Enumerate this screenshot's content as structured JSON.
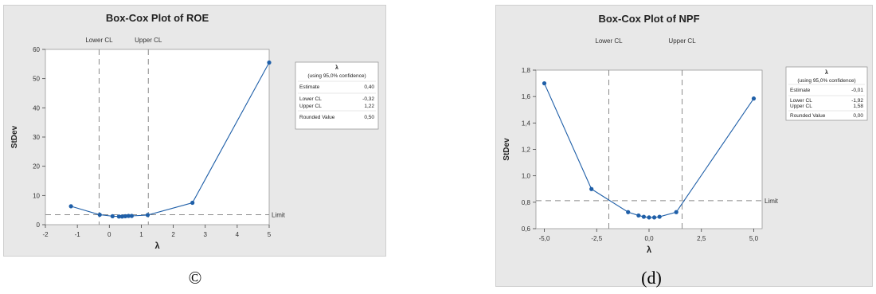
{
  "captions": [
    "©",
    "(d)"
  ],
  "chart_data": [
    {
      "type": "line",
      "title": "Box-Cox Plot of ROE",
      "xlabel": "λ",
      "ylabel": "StDev",
      "xlim": [
        -2,
        5
      ],
      "ylim": [
        0,
        60
      ],
      "xticks": [
        -2,
        -1,
        0,
        1,
        2,
        3,
        4,
        5
      ],
      "xtick_labels": [
        "-2",
        "-1",
        "0",
        "1",
        "2",
        "3",
        "4",
        "5"
      ],
      "yticks": [
        0,
        10,
        20,
        30,
        40,
        50,
        60
      ],
      "ytick_labels": [
        "0",
        "10",
        "20",
        "30",
        "40",
        "50",
        "60"
      ],
      "vlines": [
        {
          "x": -0.32,
          "label": "Lower CL"
        },
        {
          "x": 1.22,
          "label": "Upper CL"
        }
      ],
      "hline": {
        "y": 3.4,
        "label": "Limit"
      },
      "series": [
        {
          "x": [
            -1.2,
            -0.3,
            0.1,
            0.3,
            0.4,
            0.5,
            0.6,
            0.7,
            1.2,
            2.6,
            5.0
          ],
          "y": [
            6.3,
            3.4,
            2.9,
            2.8,
            2.8,
            2.9,
            3.0,
            3.0,
            3.3,
            7.5,
            55.5
          ]
        }
      ],
      "grid": false,
      "legend": {
        "title": "λ",
        "subtitle": "(using 95,0% confidence)",
        "rows": [
          {
            "label": "Estimate",
            "value": "0,40"
          },
          {
            "label": "Lower CL",
            "value": "-0,32"
          },
          {
            "label": "Upper CL",
            "value": "1,22"
          },
          {
            "label": "Rounded Value",
            "value": "0,50"
          }
        ],
        "position": "right"
      },
      "color": "#1f5fa8"
    },
    {
      "type": "line",
      "title": "Box-Cox Plot of NPF",
      "xlabel": "λ",
      "ylabel": "StDev",
      "xlim": [
        -5.4,
        5.4
      ],
      "ylim": [
        0.6,
        1.8
      ],
      "xticks": [
        -5,
        -2.5,
        0,
        2.5,
        5
      ],
      "xtick_labels": [
        "-5,0",
        "-2,5",
        "0,0",
        "2,5",
        "5,0"
      ],
      "yticks": [
        0.6,
        0.8,
        1.0,
        1.2,
        1.4,
        1.6,
        1.8
      ],
      "ytick_labels": [
        "0,6",
        "0,8",
        "1,0",
        "1,2",
        "1,4",
        "1,6",
        "1,8"
      ],
      "vlines": [
        {
          "x": -1.92,
          "label": "Lower CL"
        },
        {
          "x": 1.58,
          "label": "Upper CL"
        }
      ],
      "hline": {
        "y": 0.812,
        "label": "Limit"
      },
      "series": [
        {
          "x": [
            -5.0,
            -2.75,
            -1.0,
            -0.5,
            -0.25,
            0.0,
            0.25,
            0.5,
            1.3,
            5.0
          ],
          "y": [
            1.7,
            0.9,
            0.725,
            0.7,
            0.69,
            0.685,
            0.685,
            0.69,
            0.725,
            1.585
          ]
        }
      ],
      "grid": false,
      "legend": {
        "title": "λ",
        "subtitle": "(using 95,0% confidence)",
        "rows": [
          {
            "label": "Estimate",
            "value": "-0,01"
          },
          {
            "label": "Lower CL",
            "value": "-1,92"
          },
          {
            "label": "Upper CL",
            "value": "1,58"
          },
          {
            "label": "Rounded Value",
            "value": "0,00"
          }
        ],
        "position": "right"
      },
      "color": "#1f5fa8"
    }
  ]
}
